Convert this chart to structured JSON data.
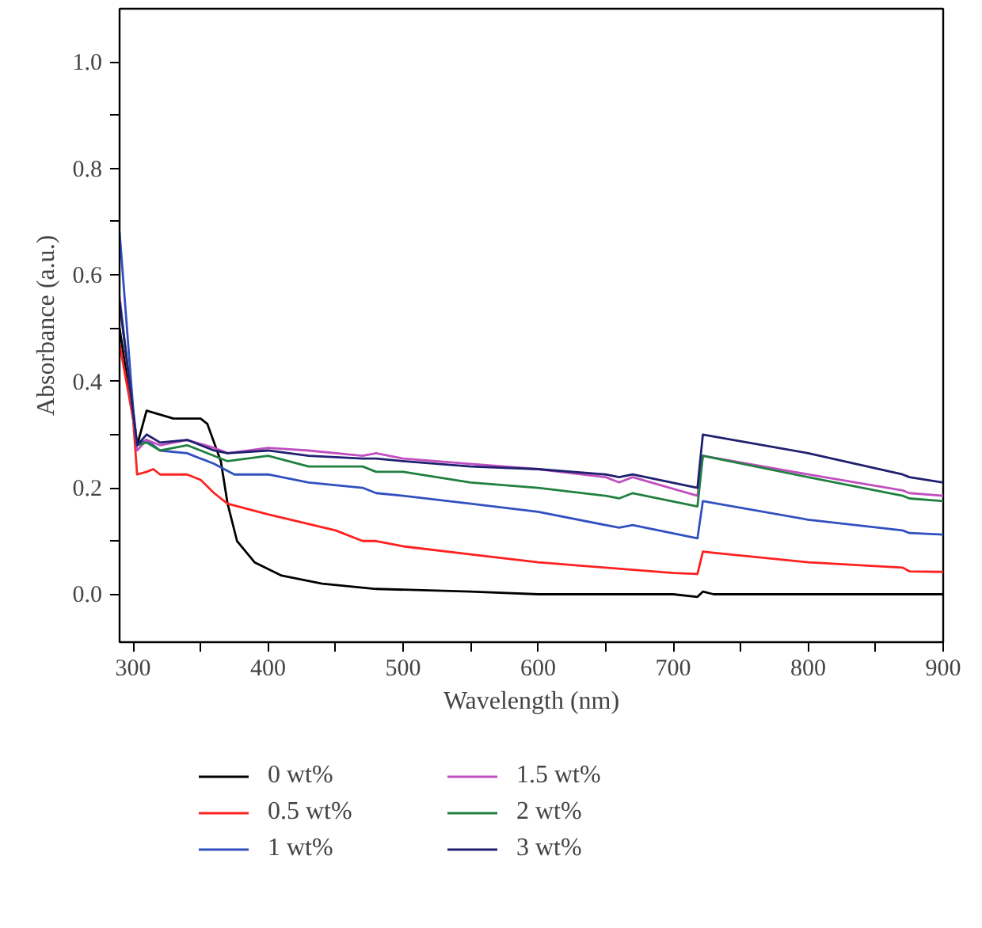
{
  "chart_data": {
    "type": "line",
    "xlabel": "Wavelength (nm)",
    "ylabel": "Absorbance (a.u.)",
    "xlim": [
      290,
      900
    ],
    "ylim": [
      -0.09,
      1.1
    ],
    "xticks": [
      300,
      {
        "value": 350,
        "label": null
      },
      400,
      {
        "value": 450,
        "label": null
      },
      500,
      {
        "value": 550,
        "label": null
      },
      600,
      {
        "value": 650,
        "label": null
      },
      700,
      {
        "value": 750,
        "label": null
      },
      800,
      {
        "value": 850,
        "label": null
      },
      900
    ],
    "yticks": [
      {
        "value": 0,
        "label": "0.0"
      },
      {
        "value": 0.1,
        "label": null
      },
      {
        "value": 0.2,
        "label": "0.2"
      },
      {
        "value": 0.3,
        "label": null
      },
      {
        "value": 0.4,
        "label": "0.4"
      },
      {
        "value": 0.5,
        "label": null
      },
      {
        "value": 0.6,
        "label": "0.6"
      },
      {
        "value": 0.7,
        "label": null
      },
      {
        "value": 0.8,
        "label": "0.8"
      },
      {
        "value": 0.9,
        "label": null
      },
      {
        "value": 1.0,
        "label": "1.0"
      }
    ],
    "grid": false,
    "legend": "bottom",
    "line_style": "solid",
    "marker": "none",
    "series": [
      {
        "name": "0 wt%",
        "color": "#000000",
        "x": [
          290,
          300,
          303,
          310,
          330,
          350,
          355,
          365,
          370,
          377,
          390,
          410,
          440,
          480,
          550,
          600,
          700,
          718,
          722,
          730,
          800,
          900
        ],
        "values": [
          0.5,
          0.33,
          0.28,
          0.345,
          0.33,
          0.33,
          0.32,
          0.25,
          0.17,
          0.1,
          0.06,
          0.035,
          0.02,
          0.01,
          0.005,
          0,
          0,
          -0.005,
          0.005,
          0,
          0,
          0
        ]
      },
      {
        "name": "0.5 wt%",
        "color": "#ff2020",
        "x": [
          290,
          300,
          303,
          310,
          315,
          320,
          340,
          350,
          360,
          370,
          400,
          450,
          470,
          480,
          500,
          550,
          600,
          650,
          700,
          718,
          722,
          730,
          800,
          870,
          875,
          900
        ],
        "values": [
          0.47,
          0.33,
          0.225,
          0.23,
          0.235,
          0.225,
          0.225,
          0.215,
          0.19,
          0.17,
          0.15,
          0.12,
          0.1,
          0.1,
          0.09,
          0.075,
          0.06,
          0.05,
          0.04,
          0.038,
          0.08,
          0.078,
          0.06,
          0.05,
          0.043,
          0.042
        ]
      },
      {
        "name": "1 wt%",
        "color": "#3050c0",
        "x": [
          290,
          300,
          303,
          310,
          320,
          340,
          360,
          375,
          400,
          430,
          470,
          480,
          500,
          550,
          600,
          650,
          660,
          670,
          718,
          722,
          800,
          870,
          875,
          900
        ],
        "values": [
          0.68,
          0.35,
          0.28,
          0.29,
          0.27,
          0.265,
          0.245,
          0.225,
          0.225,
          0.21,
          0.2,
          0.19,
          0.185,
          0.17,
          0.155,
          0.13,
          0.125,
          0.13,
          0.105,
          0.175,
          0.14,
          0.12,
          0.115,
          0.112
        ]
      },
      {
        "name": "1.5 wt%",
        "color": "#c050c0",
        "x": [
          290,
          303,
          310,
          320,
          340,
          360,
          370,
          400,
          430,
          470,
          480,
          500,
          550,
          600,
          650,
          660,
          670,
          718,
          722,
          800,
          870,
          875,
          900
        ],
        "values": [
          0.56,
          0.27,
          0.29,
          0.28,
          0.29,
          0.275,
          0.265,
          0.275,
          0.27,
          0.26,
          0.265,
          0.255,
          0.245,
          0.235,
          0.22,
          0.21,
          0.22,
          0.185,
          0.26,
          0.225,
          0.195,
          0.19,
          0.185
        ]
      },
      {
        "name": "2 wt%",
        "color": "#208040",
        "x": [
          290,
          303,
          310,
          320,
          340,
          360,
          370,
          400,
          430,
          470,
          480,
          500,
          550,
          600,
          650,
          660,
          670,
          718,
          722,
          800,
          870,
          875,
          900
        ],
        "values": [
          0.55,
          0.28,
          0.285,
          0.27,
          0.28,
          0.26,
          0.25,
          0.26,
          0.24,
          0.24,
          0.23,
          0.23,
          0.21,
          0.2,
          0.185,
          0.18,
          0.19,
          0.165,
          0.26,
          0.22,
          0.185,
          0.18,
          0.175
        ]
      },
      {
        "name": "3 wt%",
        "color": "#202070",
        "x": [
          290,
          303,
          310,
          320,
          340,
          360,
          370,
          400,
          430,
          470,
          480,
          500,
          550,
          600,
          650,
          660,
          670,
          718,
          722,
          800,
          870,
          875,
          900
        ],
        "values": [
          0.55,
          0.28,
          0.3,
          0.285,
          0.29,
          0.27,
          0.265,
          0.27,
          0.26,
          0.255,
          0.255,
          0.25,
          0.24,
          0.235,
          0.225,
          0.22,
          0.225,
          0.2,
          0.3,
          0.265,
          0.225,
          0.22,
          0.21
        ]
      }
    ]
  }
}
